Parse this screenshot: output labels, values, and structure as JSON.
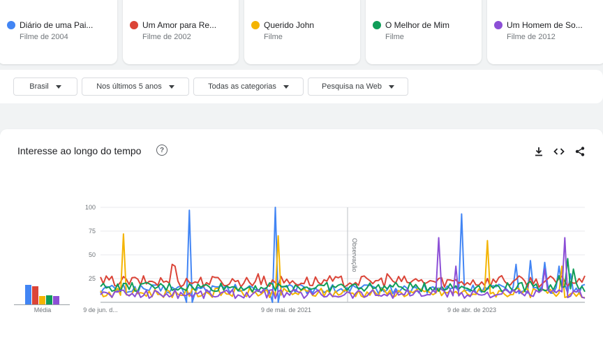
{
  "terms": [
    {
      "name": "Diário de uma Pai...",
      "sub": "Filme de 2004",
      "color": "#4285f4"
    },
    {
      "name": "Um Amor para Re...",
      "sub": "Filme de 2002",
      "color": "#db4437"
    },
    {
      "name": "Querido John",
      "sub": "Filme",
      "color": "#f4b400"
    },
    {
      "name": "O Melhor de Mim",
      "sub": "Filme",
      "color": "#0f9d58"
    },
    {
      "name": "Um Homem de So...",
      "sub": "Filme de 2012",
      "color": "#8c4fd6"
    }
  ],
  "filters": {
    "region": "Brasil",
    "period": "Nos últimos 5 anos",
    "category": "Todas as categorias",
    "search_type": "Pesquisa na Web"
  },
  "panel": {
    "title": "Interesse ao longo do tempo",
    "help_glyph": "?",
    "avg_label": "Média",
    "note_label": "Observação",
    "icons": [
      "download-icon",
      "embed-icon",
      "share-icon"
    ]
  },
  "chart_data": {
    "type": "line",
    "title": "",
    "xlabel": "",
    "ylabel": "",
    "ylim": [
      0,
      100
    ],
    "yticks": [
      "100",
      "75",
      "50",
      "25"
    ],
    "xticks": [
      "9 de jun. d...",
      "9 de mai. de 2021",
      "9 de abr. de 2023"
    ],
    "averages": [
      21,
      19,
      9,
      10,
      9
    ],
    "series": [
      {
        "name": "Diário de uma Pai...",
        "color": "#4285f4",
        "base": 14,
        "amp": 5,
        "spikes": [
          [
            30,
            0
          ],
          [
            31,
            97
          ],
          [
            32,
            0
          ],
          [
            60,
            0
          ],
          [
            61,
            100
          ],
          [
            62,
            0
          ],
          [
            125,
            12
          ],
          [
            126,
            93
          ],
          [
            127,
            12
          ],
          [
            145,
            40
          ],
          [
            150,
            44
          ],
          [
            155,
            42
          ],
          [
            160,
            38
          ],
          [
            164,
            30
          ]
        ]
      },
      {
        "name": "Um Amor para Re...",
        "color": "#db4437",
        "base": 22,
        "amp": 6,
        "spikes": [
          [
            25,
            40
          ],
          [
            26,
            38
          ],
          [
            55,
            30
          ],
          [
            100,
            30
          ],
          [
            140,
            28
          ]
        ]
      },
      {
        "name": "Querido John",
        "color": "#f4b400",
        "base": 10,
        "amp": 5,
        "spikes": [
          [
            8,
            72
          ],
          [
            62,
            70
          ],
          [
            135,
            65
          ],
          [
            161,
            38
          ]
        ]
      },
      {
        "name": "O Melhor de Mim",
        "color": "#0f9d58",
        "base": 16,
        "amp": 5,
        "spikes": [
          [
            150,
            22
          ],
          [
            160,
            28
          ],
          [
            163,
            46
          ],
          [
            165,
            35
          ]
        ]
      },
      {
        "name": "Um Homem de So...",
        "color": "#8c4fd6",
        "base": 9,
        "amp": 5,
        "spikes": [
          [
            118,
            68
          ],
          [
            124,
            38
          ],
          [
            155,
            35
          ],
          [
            162,
            68
          ]
        ]
      }
    ]
  }
}
